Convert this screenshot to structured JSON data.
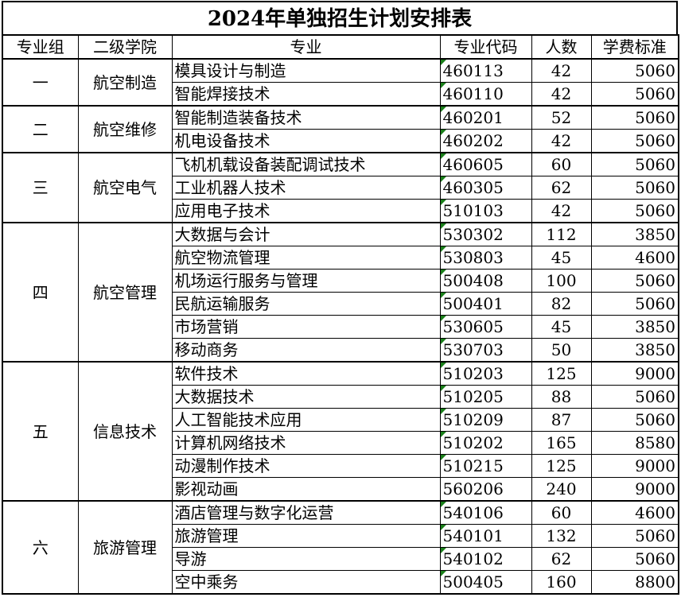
{
  "title": "2024年单独招生计划安排表",
  "headers": [
    "专业组",
    "二级学院",
    "专业",
    "专业代码",
    "人数",
    "学费标准"
  ],
  "colors": {
    "comment_marker": "#1a7f1a"
  },
  "groups": [
    {
      "group": "一",
      "college": "航空制造",
      "rows": [
        {
          "major": "模具设计与制造",
          "code": "460113",
          "count": "42",
          "fee": "5060",
          "marker": true
        },
        {
          "major": "智能焊接技术",
          "code": "460110",
          "count": "42",
          "fee": "5060",
          "marker": true
        }
      ]
    },
    {
      "group": "二",
      "college": "航空维修",
      "rows": [
        {
          "major": "智能制造装备技术",
          "code": "460201",
          "count": "52",
          "fee": "5060",
          "marker": true
        },
        {
          "major": "机电设备技术",
          "code": "460202",
          "count": "42",
          "fee": "5060",
          "marker": true
        }
      ]
    },
    {
      "group": "三",
      "college": "航空电气",
      "rows": [
        {
          "major": "飞机机载设备装配调试技术",
          "code": "460605",
          "count": "60",
          "fee": "5060",
          "marker": true
        },
        {
          "major": "工业机器人技术",
          "code": "460305",
          "count": "62",
          "fee": "5060",
          "marker": true
        },
        {
          "major": "应用电子技术",
          "code": "510103",
          "count": "42",
          "fee": "5060",
          "marker": true
        }
      ]
    },
    {
      "group": "四",
      "college": "航空管理",
      "rows": [
        {
          "major": "大数据与会计",
          "code": "530302",
          "count": "112",
          "fee": "3850",
          "marker": true
        },
        {
          "major": "航空物流管理",
          "code": "530803",
          "count": "45",
          "fee": "4600",
          "marker": true
        },
        {
          "major": "机场运行服务与管理",
          "code": "500408",
          "count": "100",
          "fee": "5060",
          "marker": true
        },
        {
          "major": "民航运输服务",
          "code": "500401",
          "count": "82",
          "fee": "5060",
          "marker": true
        },
        {
          "major": "市场营销",
          "code": "530605",
          "count": "45",
          "fee": "3850",
          "marker": true
        },
        {
          "major": "移动商务",
          "code": "530703",
          "count": "50",
          "fee": "3850",
          "marker": true
        }
      ]
    },
    {
      "group": "五",
      "college": "信息技术",
      "rows": [
        {
          "major": "软件技术",
          "code": "510203",
          "count": "125",
          "fee": "9000",
          "marker": true
        },
        {
          "major": "大数据技术",
          "code": "510205",
          "count": "88",
          "fee": "5060",
          "marker": true
        },
        {
          "major": "人工智能技术应用",
          "code": "510209",
          "count": "87",
          "fee": "5060",
          "marker": true
        },
        {
          "major": "计算机网络技术",
          "code": "510202",
          "count": "165",
          "fee": "8580",
          "marker": true
        },
        {
          "major": "动漫制作技术",
          "code": "510215",
          "count": "125",
          "fee": "9000",
          "marker": true
        },
        {
          "major": "影视动画",
          "code": "560206",
          "count": "240",
          "fee": "9000",
          "marker": false
        }
      ]
    },
    {
      "group": "六",
      "college": "旅游管理",
      "rows": [
        {
          "major": "酒店管理与数字化运营",
          "code": "540106",
          "count": "60",
          "fee": "4600",
          "marker": true
        },
        {
          "major": "旅游管理",
          "code": "540101",
          "count": "132",
          "fee": "5060",
          "marker": true
        },
        {
          "major": "导游",
          "code": "540102",
          "count": "62",
          "fee": "5060",
          "marker": true
        },
        {
          "major": "空中乘务",
          "code": "500405",
          "count": "160",
          "fee": "8800",
          "marker": true
        }
      ]
    }
  ]
}
